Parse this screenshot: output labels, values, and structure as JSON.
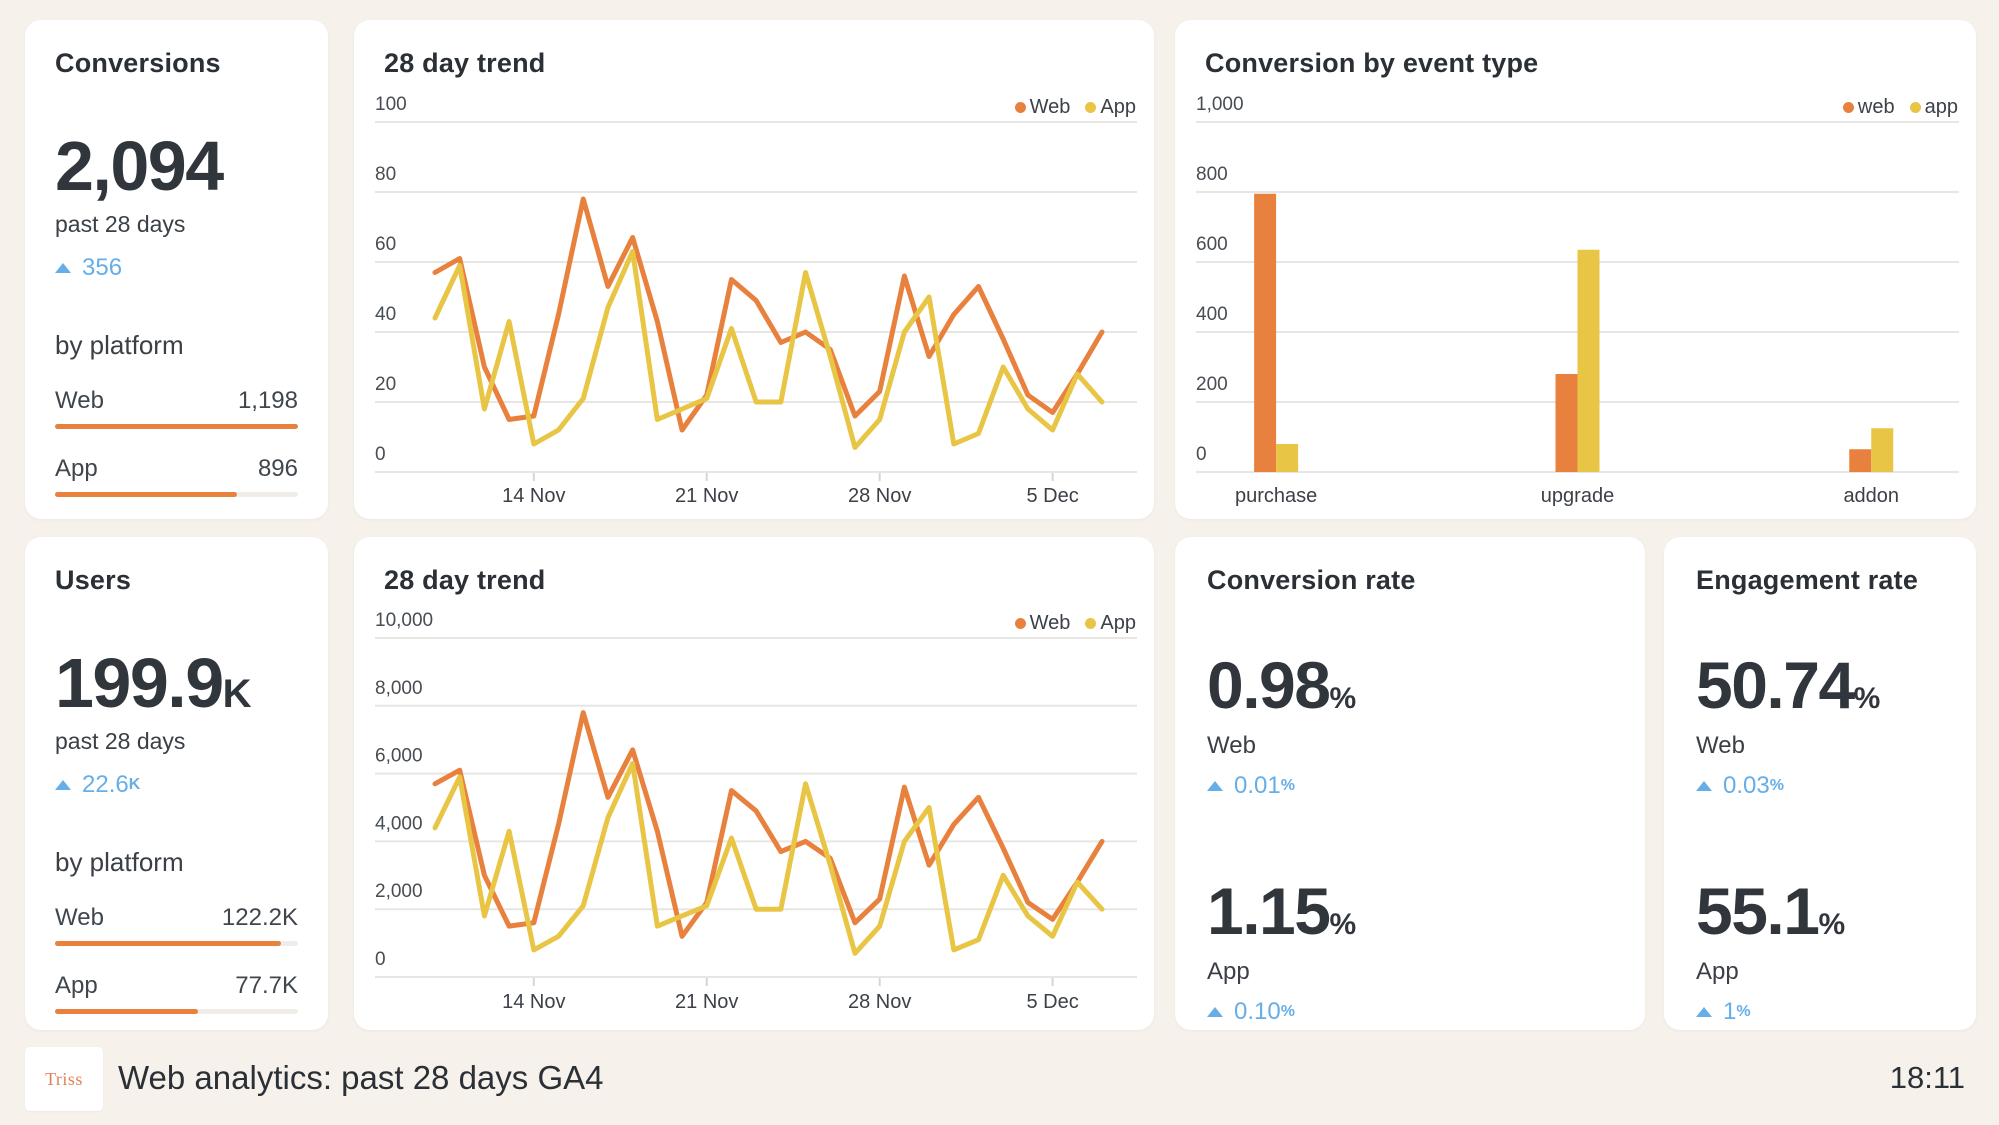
{
  "theme": {
    "orange": "#E8813E",
    "yellow": "#E9C546",
    "blue": "#66AEE8",
    "background": "#F6F1EB",
    "card": "#FFFFFF",
    "gridline": "#E8E6E2",
    "tick": "#D8D5D1",
    "axis_text": "#474D53"
  },
  "conversions_card": {
    "title": "Conversions",
    "value": "2,094",
    "value_suffix": "",
    "period": "past 28 days",
    "delta": "356",
    "delta_suffix": "",
    "section": "by platform",
    "platforms": [
      {
        "label": "Web",
        "value": "1,198",
        "fill": 100
      },
      {
        "label": "App",
        "value": "896",
        "fill": 75
      }
    ]
  },
  "users_card": {
    "title": "Users",
    "value": "199.9",
    "value_suffix": "K",
    "period": "past 28 days",
    "delta": "22.6",
    "delta_suffix": "K",
    "section": "by platform",
    "platforms": [
      {
        "label": "Web",
        "value": "122.2K",
        "fill": 93
      },
      {
        "label": "App",
        "value": "77.7K",
        "fill": 59
      }
    ]
  },
  "conversion_rate_card": {
    "title": "Conversion rate",
    "metrics": [
      {
        "value": "0.98",
        "suffix": "%",
        "label": "Web",
        "delta": "0.01",
        "delta_suffix": "%"
      },
      {
        "value": "1.15",
        "suffix": "%",
        "label": "App",
        "delta": "0.10",
        "delta_suffix": "%"
      }
    ]
  },
  "engagement_rate_card": {
    "title": "Engagement rate",
    "metrics": [
      {
        "value": "50.74",
        "suffix": "%",
        "label": "Web",
        "delta": "0.03",
        "delta_suffix": "%"
      },
      {
        "value": "55.1",
        "suffix": "%",
        "label": "App",
        "delta": "1",
        "delta_suffix": "%"
      }
    ]
  },
  "chart_data": [
    {
      "type": "line",
      "title": "28 day trend",
      "legend": [
        "Web",
        "App"
      ],
      "legend_position": "top-right",
      "grid": true,
      "ylim": [
        0,
        100
      ],
      "y_ticks": [
        "0",
        "20",
        "40",
        "60",
        "80",
        "100"
      ],
      "x_tick_labels": [
        "14 Nov",
        "21 Nov",
        "28 Nov",
        "5 Dec"
      ],
      "x_tick_indices": [
        4,
        11,
        18,
        25
      ],
      "series": [
        {
          "name": "Web",
          "color_key": "orange",
          "values": [
            57,
            61,
            30,
            15,
            16,
            45,
            78,
            53,
            67,
            43,
            12,
            22,
            55,
            49,
            37,
            40,
            35,
            16,
            23,
            56,
            33,
            45,
            53,
            38,
            22,
            17,
            28,
            40
          ]
        },
        {
          "name": "App",
          "color_key": "yellow",
          "values": [
            44,
            59,
            18,
            43,
            8,
            12,
            21,
            47,
            63,
            15,
            18,
            21,
            41,
            20,
            20,
            57,
            33,
            7,
            15,
            40,
            50,
            8,
            11,
            30,
            18,
            12,
            28,
            20
          ]
        }
      ]
    },
    {
      "type": "bar",
      "title": "Conversion by event type",
      "legend": [
        "web",
        "app"
      ],
      "legend_position": "top-right",
      "grid": true,
      "ylim": [
        0,
        1000
      ],
      "y_ticks": [
        "0",
        "200",
        "400",
        "600",
        "800",
        "1,000"
      ],
      "categories": [
        "purchase",
        "upgrade",
        "addon"
      ],
      "series": [
        {
          "name": "web",
          "color_key": "orange",
          "values": [
            795,
            280,
            65
          ]
        },
        {
          "name": "app",
          "color_key": "yellow",
          "values": [
            80,
            635,
            125
          ]
        }
      ]
    },
    {
      "type": "line",
      "title": "28 day trend",
      "legend": [
        "Web",
        "App"
      ],
      "legend_position": "top-right",
      "grid": true,
      "ylim": [
        0,
        10000
      ],
      "y_ticks": [
        "0",
        "2,000",
        "4,000",
        "6,000",
        "8,000",
        "10,000"
      ],
      "x_tick_labels": [
        "14 Nov",
        "21 Nov",
        "28 Nov",
        "5 Dec"
      ],
      "x_tick_indices": [
        4,
        11,
        18,
        25
      ],
      "series": [
        {
          "name": "Web",
          "color_key": "orange",
          "values": [
            5700,
            6100,
            3000,
            1500,
            1600,
            4500,
            7800,
            5300,
            6700,
            4300,
            1200,
            2200,
            5500,
            4900,
            3700,
            4000,
            3500,
            1600,
            2300,
            5600,
            3300,
            4500,
            5300,
            3800,
            2200,
            1700,
            2800,
            4000
          ]
        },
        {
          "name": "App",
          "color_key": "yellow",
          "values": [
            4400,
            5900,
            1800,
            4300,
            800,
            1200,
            2100,
            4700,
            6300,
            1500,
            1800,
            2100,
            4100,
            2000,
            2000,
            5700,
            3300,
            700,
            1500,
            4000,
            5000,
            800,
            1100,
            3000,
            1800,
            1200,
            2800,
            2000
          ]
        }
      ]
    }
  ],
  "footer": {
    "logo": "Triss",
    "title": "Web analytics: past 28 days GA4",
    "time": "18:11"
  }
}
